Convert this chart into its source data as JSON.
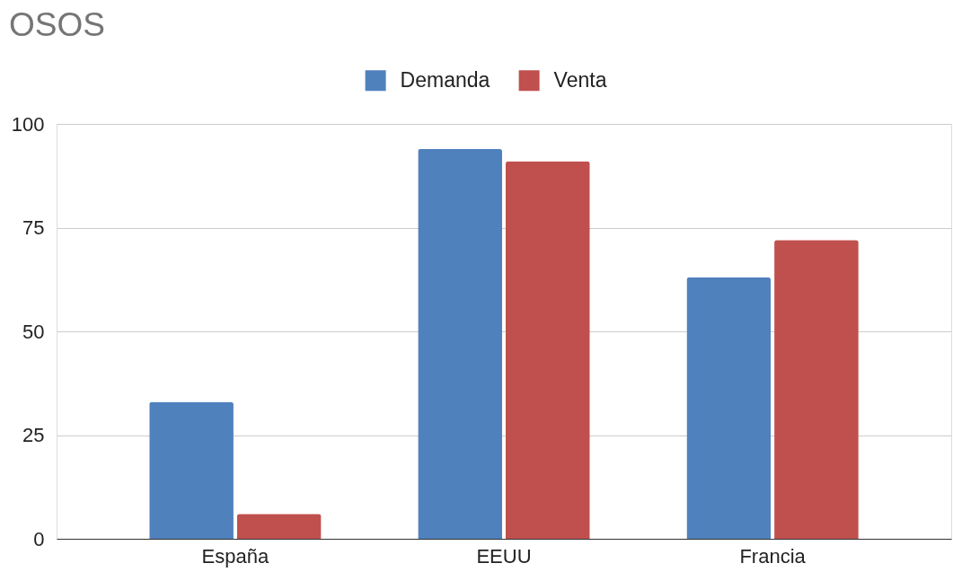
{
  "chart_data": {
    "type": "bar",
    "title": "OSOS",
    "categories": [
      "España",
      "EEUU",
      "Francia"
    ],
    "series": [
      {
        "name": "Demanda",
        "color": "#4f81bd",
        "values": [
          33,
          94,
          63
        ]
      },
      {
        "name": "Venta",
        "color": "#c0504d",
        "values": [
          6,
          91,
          72
        ]
      }
    ],
    "ylim": [
      0,
      100
    ],
    "yticks": [
      0,
      25,
      50,
      75,
      100
    ],
    "grid": "y",
    "legend": "top"
  }
}
